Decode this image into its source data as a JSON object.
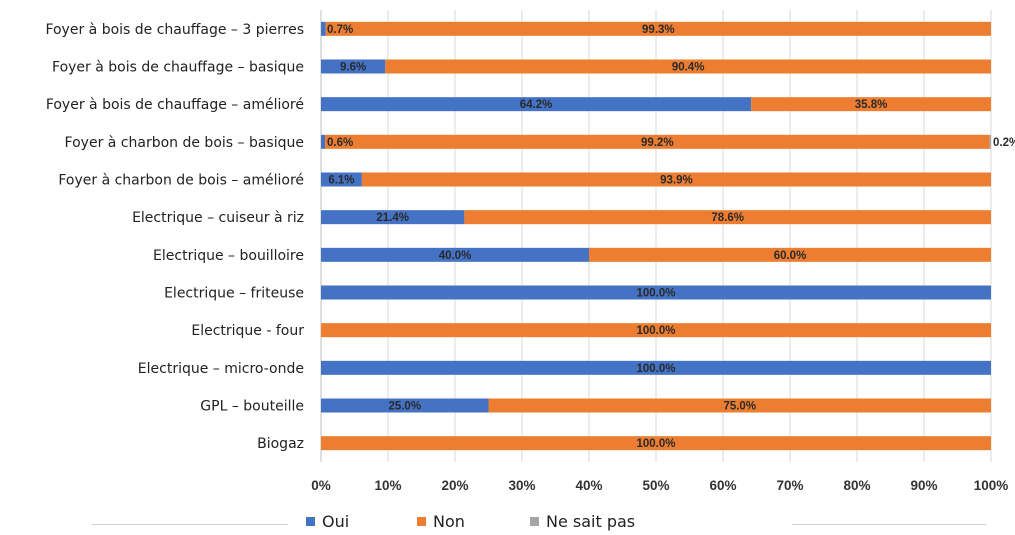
{
  "chart_data": {
    "type": "bar",
    "orientation": "horizontal",
    "stacked": true,
    "categories": [
      "Foyer à bois de chauffage – 3 pierres",
      "Foyer à bois de chauffage – basique",
      "Foyer à bois de chauffage – amélioré",
      "Foyer à charbon de bois – basique",
      "Foyer à charbon de bois – amélioré",
      "Electrique – cuiseur à riz",
      "Electrique – bouilloire",
      "Electrique – friteuse",
      "Electrique - four",
      "Electrique – micro-onde",
      "GPL – bouteille",
      "Biogaz"
    ],
    "series": [
      {
        "name": "Oui",
        "color": "#4472c4",
        "values": [
          0.7,
          9.6,
          64.2,
          0.6,
          6.1,
          21.4,
          40.0,
          100.0,
          0,
          100.0,
          25.0,
          0
        ],
        "labels": [
          "0.7%",
          "9.6%",
          "64.2%",
          "0.6%",
          "6.1%",
          "21.4%",
          "40.0%",
          "100.0%",
          "",
          "100.0%",
          "25.0%",
          ""
        ]
      },
      {
        "name": "Non",
        "color": "#ed7d31",
        "values": [
          99.3,
          90.4,
          35.8,
          99.2,
          93.9,
          78.6,
          60.0,
          0,
          100.0,
          0,
          75.0,
          100.0
        ],
        "labels": [
          "99.3%",
          "90.4%",
          "35.8%",
          "99.2%",
          "93.9%",
          "78.6%",
          "60.0%",
          "",
          "100.0%",
          "",
          "75.0%",
          "100.0%"
        ]
      },
      {
        "name": "Ne sait pas",
        "color": "#a5a5a5",
        "values": [
          0,
          0,
          0,
          0.2,
          0,
          0,
          0,
          0,
          0,
          0,
          0,
          0
        ],
        "labels": [
          "",
          "",
          "",
          "0.2%",
          "",
          "",
          "",
          "",
          "",
          "",
          "",
          ""
        ]
      }
    ],
    "x_ticks": [
      "0%",
      "10%",
      "20%",
      "30%",
      "40%",
      "50%",
      "60%",
      "70%",
      "80%",
      "90%",
      "100%"
    ],
    "xlim": [
      0,
      100
    ],
    "grid": true,
    "legend_position": "bottom"
  }
}
